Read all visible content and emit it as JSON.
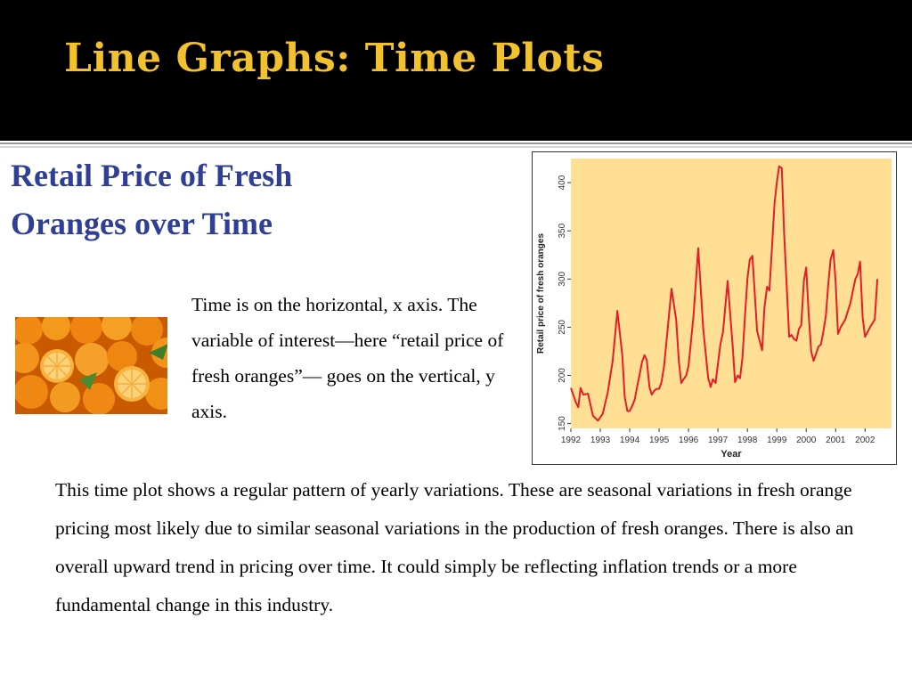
{
  "slide": {
    "title": "Line Graphs: Time Plots",
    "subtitle": "Retail Price of  Fresh Oranges over Time",
    "axis_note": "Time is on the horizontal, x axis. The variable of interest—here “retail price of fresh oranges”— goes on the vertical, y axis.",
    "summary": "This time plot shows a regular pattern of yearly variations. These are seasonal variations in fresh orange pricing most likely due to similar seasonal variations in the production of fresh oranges. There is also an overall upward trend in pricing over time. It could simply be reflecting inflation trends or a more fundamental change in this industry.",
    "colors": {
      "header_bg": "#000000",
      "title": "#f2c12e",
      "subtitle": "#2f3f95",
      "plot_bg": "#ffdf94",
      "line": "#e41e26"
    }
  },
  "chart_data": {
    "type": "line",
    "title": "",
    "xlabel": "Year",
    "ylabel": "Retail price of fresh oranges",
    "xlim": [
      1992,
      2002.9
    ],
    "ylim": [
      145,
      425
    ],
    "xticks": [
      "1992",
      "1993",
      "1994",
      "1995",
      "1996",
      "1997",
      "1998",
      "1999",
      "2000",
      "2001",
      "2002"
    ],
    "yticks": [
      "150",
      "200",
      "250",
      "300",
      "350",
      "400"
    ],
    "grid": false,
    "series": [
      {
        "x": [
          1992.0,
          1992.17,
          1992.25,
          1992.33,
          1992.42,
          1992.58,
          1992.75,
          1992.92,
          1993.08,
          1993.25,
          1993.42,
          1993.58,
          1993.75,
          1993.83,
          1993.92,
          1994.0,
          1994.08,
          1994.17,
          1994.25,
          1994.33,
          1994.42,
          1994.5,
          1994.58,
          1994.67,
          1994.75,
          1994.83,
          1994.92,
          1995.0,
          1995.08,
          1995.17,
          1995.25,
          1995.42,
          1995.58,
          1995.67,
          1995.75,
          1995.83,
          1995.92,
          1996.0,
          1996.08,
          1996.17,
          1996.33,
          1996.5,
          1996.67,
          1996.75,
          1996.83,
          1996.92,
          1997.0,
          1997.08,
          1997.17,
          1997.33,
          1997.5,
          1997.58,
          1997.67,
          1997.75,
          1997.83,
          1997.92,
          1998.0,
          1998.08,
          1998.17,
          1998.33,
          1998.5,
          1998.58,
          1998.67,
          1998.75,
          1998.83,
          1998.92,
          1999.0,
          1999.08,
          1999.17,
          1999.25,
          1999.42,
          1999.5,
          1999.58,
          1999.67,
          1999.75,
          1999.83,
          1999.92,
          2000.0,
          2000.08,
          2000.17,
          2000.25,
          2000.42,
          2000.5,
          2000.58,
          2000.67,
          2000.75,
          2000.83,
          2000.92,
          2001.0,
          2001.08,
          2001.17,
          2001.33,
          2001.5,
          2001.67,
          2001.75,
          2001.83,
          2001.92,
          2002.0,
          2002.17,
          2002.33,
          2002.42
        ],
        "y": [
          187,
          172,
          167,
          187,
          180,
          181,
          158,
          153,
          160,
          182,
          215,
          267,
          220,
          178,
          163,
          163,
          168,
          175,
          188,
          200,
          214,
          221,
          216,
          188,
          180,
          184,
          186,
          186,
          193,
          210,
          235,
          290,
          258,
          215,
          192,
          196,
          200,
          210,
          235,
          262,
          332,
          248,
          197,
          188,
          196,
          192,
          212,
          232,
          245,
          298,
          230,
          193,
          200,
          197,
          218,
          262,
          300,
          320,
          324,
          246,
          226,
          270,
          292,
          288,
          330,
          378,
          400,
          417,
          415,
          348,
          240,
          242,
          238,
          236,
          248,
          252,
          298,
          312,
          265,
          225,
          215,
          230,
          232,
          245,
          262,
          295,
          320,
          330,
          298,
          243,
          250,
          258,
          275,
          300,
          305,
          318,
          260,
          240,
          250,
          258,
          300
        ]
      }
    ]
  }
}
